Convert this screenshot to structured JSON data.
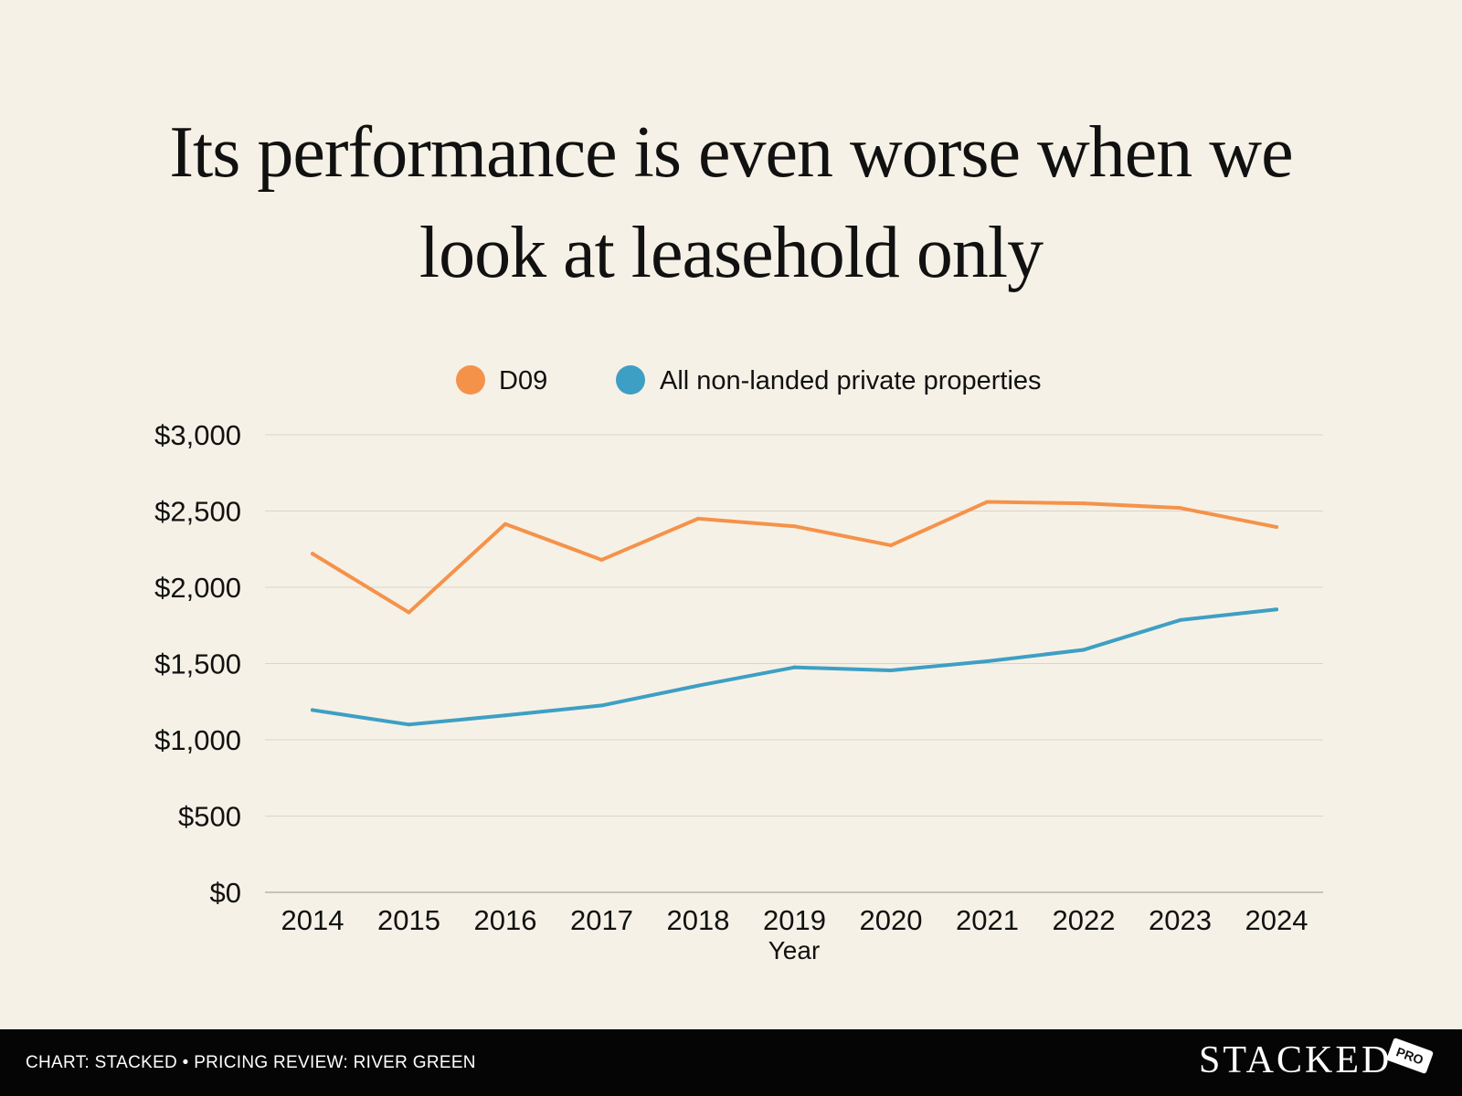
{
  "title": {
    "line1": "Its performance is even worse when we",
    "line2": "look at leasehold only"
  },
  "chart_data": {
    "type": "line",
    "categories": [
      "2014",
      "2015",
      "2016",
      "2017",
      "2018",
      "2019",
      "2020",
      "2021",
      "2022",
      "2023",
      "2024"
    ],
    "series": [
      {
        "name": "D09",
        "color": "#f5924a",
        "values": [
          2220,
          1835,
          2415,
          2180,
          2450,
          2400,
          2275,
          2560,
          2550,
          2520,
          2395
        ]
      },
      {
        "name": "All non-landed private properties",
        "color": "#3e9fc4",
        "values": [
          1195,
          1100,
          1160,
          1225,
          1355,
          1475,
          1455,
          1515,
          1590,
          1785,
          1855
        ]
      }
    ],
    "yticks": [
      0,
      500,
      1000,
      1500,
      2000,
      2500,
      3000
    ],
    "ytick_labels": [
      "$0",
      "$500",
      "$1,000",
      "$1,500",
      "$2,000",
      "$2,500",
      "$3,000"
    ],
    "ylim": [
      0,
      3000
    ],
    "xlabel": "Year",
    "ylabel": "",
    "grid": true,
    "legend_position": "top-center"
  },
  "footer": {
    "credit": "CHART: STACKED • PRICING REVIEW: RIVER GREEN",
    "logo": "STACKED",
    "badge": "PRO"
  },
  "colors": {
    "background": "#f6f1e6",
    "grid": "#d9d5cc",
    "footer": "#050505"
  }
}
